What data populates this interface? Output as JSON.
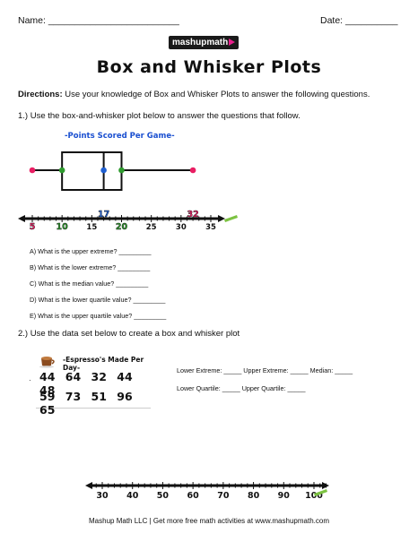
{
  "header": {
    "name_label": "Name: _________________________",
    "date_label": "Date: __________"
  },
  "logo": {
    "text": "mashupmath"
  },
  "title": "Box and Whisker Plots",
  "directions": {
    "label": "Directions:",
    "text": " Use your knowledge of Box and Whisker Plots to answer the following questions."
  },
  "question1": {
    "prompt": "1.) Use the box-and-whisker plot below to answer the questions that follow.",
    "chart_title": "-Points Scored Per Game-",
    "items": [
      "A)    What is the upper extreme? _________",
      "B)    What is the lower extreme? _________",
      "C)    What is the median value? _________",
      "D)    What is the lower quartile value? _________",
      "E)    What is the upper quartile value? _________"
    ]
  },
  "chart_data": {
    "type": "box",
    "title": "-Points Scored Per Game-",
    "min": 5,
    "q1": 10,
    "median": 17,
    "q3": 20,
    "max": 32,
    "xlim": [
      5,
      35
    ],
    "ticks": [
      5,
      10,
      15,
      17,
      20,
      25,
      30,
      32,
      35
    ],
    "highlighted_ticks": [
      {
        "value": 5,
        "label": "5",
        "color": "#e91e63"
      },
      {
        "value": 10,
        "label": "10",
        "color": "#2e9b2e"
      },
      {
        "value": 17,
        "label": "17",
        "color": "#1f5fd1"
      },
      {
        "value": 20,
        "label": "20",
        "color": "#2e9b2e"
      },
      {
        "value": 32,
        "label": "32",
        "color": "#e91e63"
      }
    ],
    "plain_ticks": [
      {
        "value": 15,
        "label": "15"
      },
      {
        "value": 25,
        "label": "25"
      },
      {
        "value": 30,
        "label": "30"
      },
      {
        "value": 35,
        "label": "35"
      }
    ]
  },
  "question2": {
    "prompt": "2.) Use the data set below to create a box and whisker plot",
    "data_title": "-Espresso's Made Per Day-",
    "row1": "44 64 32 44 48",
    "row2": "59 73 51 96 65",
    "fields_line1": "Lower Extreme: _____   Upper Extreme: _____   Median: _____",
    "fields_line2": "Lower Quartile: _____   Upper Quartile: _____",
    "axis_labels": [
      "30",
      "40",
      "50",
      "60",
      "70",
      "80",
      "90",
      "100"
    ]
  },
  "footer": "Mashup Math LLC | Get more free math activities at www.mashupmath.com",
  "colors": {
    "pink": "#e91e63",
    "green": "#2e9b2e",
    "blue": "#1f5fd1"
  },
  "icons": [
    "coffee-cup-icon",
    "arrow-right-icon"
  ]
}
